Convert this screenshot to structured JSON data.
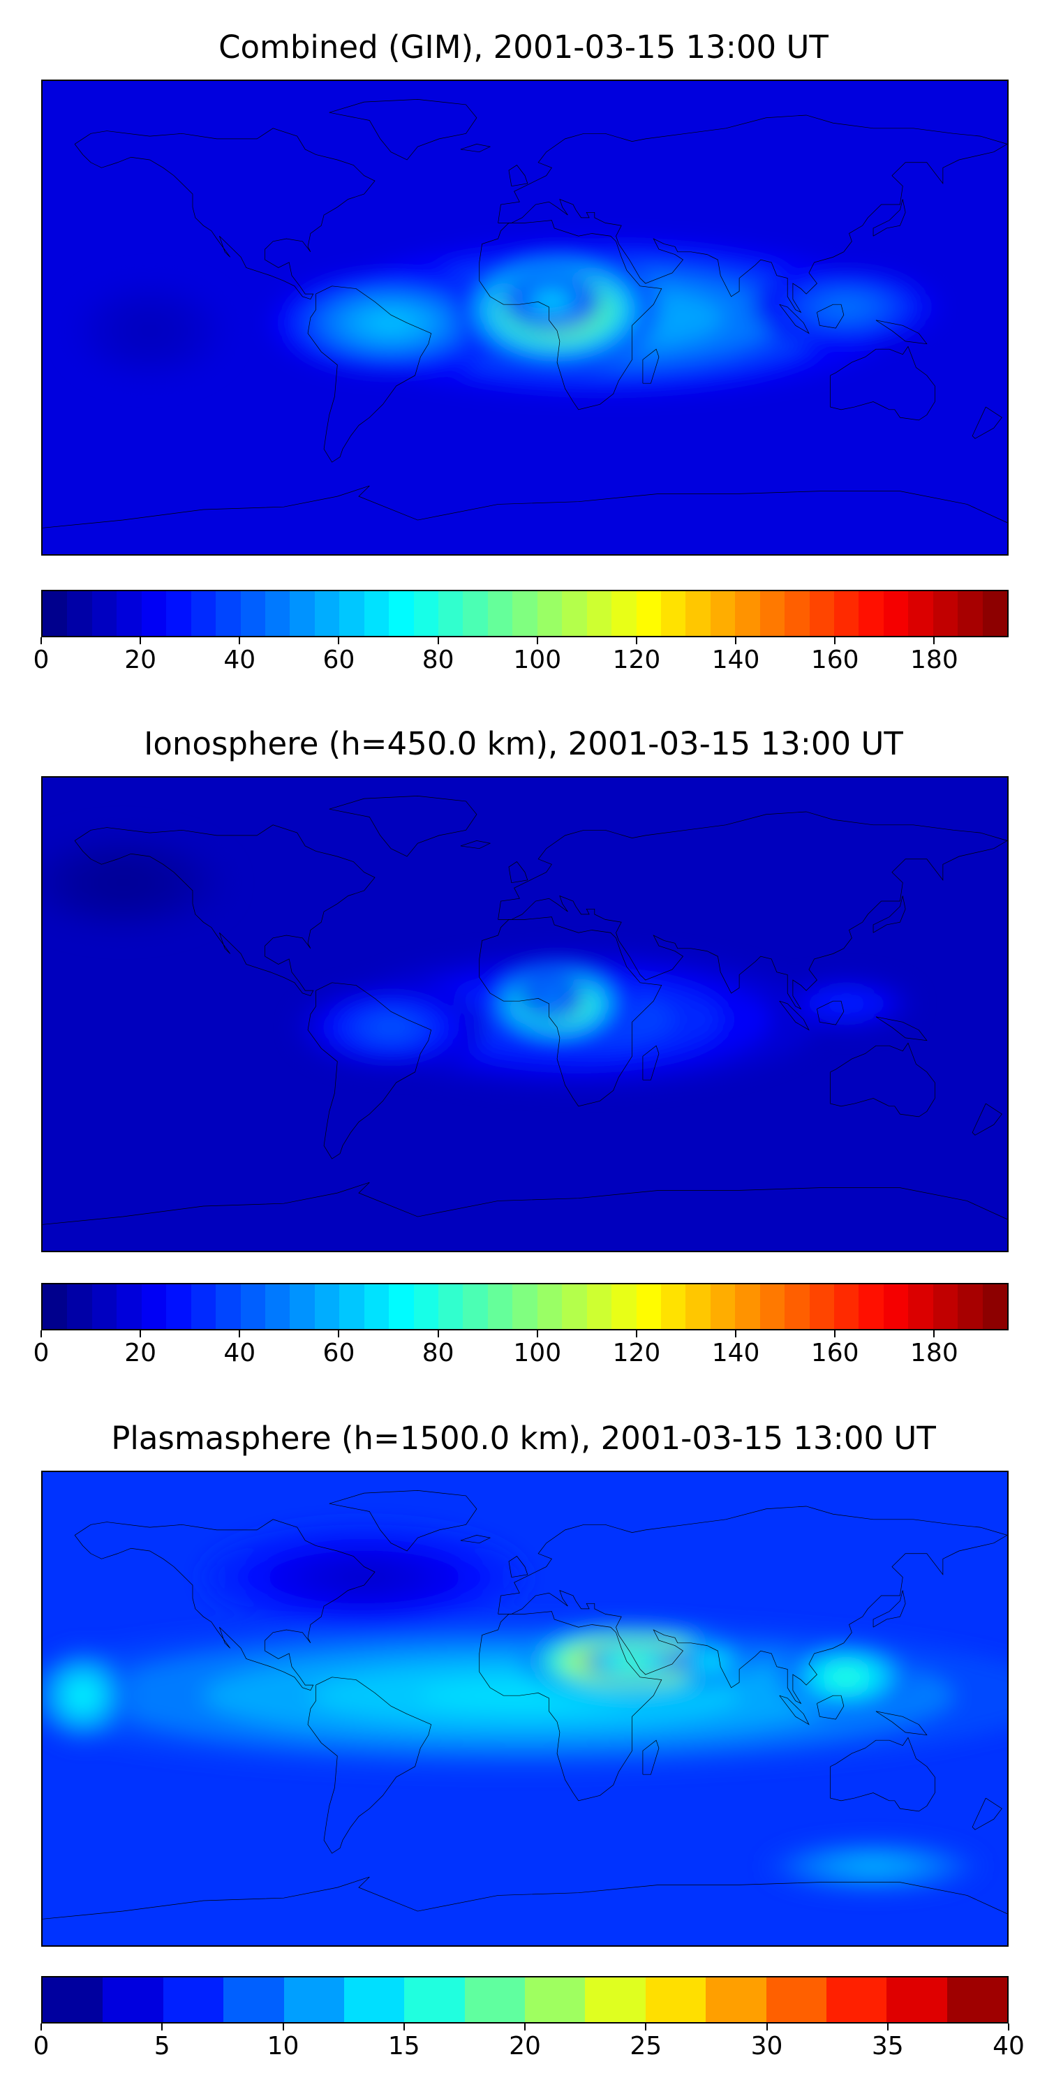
{
  "figure": {
    "panels": [
      {
        "id": "combined",
        "title": "Combined (GIM), 2001-03-15 13:00 UT",
        "colorbar": {
          "vmin": 0,
          "vmax": 195,
          "levels": 39,
          "ticks": [
            "0",
            "20",
            "40",
            "60",
            "80",
            "100",
            "120",
            "140",
            "160",
            "180"
          ],
          "tick_values": [
            0,
            20,
            40,
            60,
            80,
            100,
            120,
            140,
            160,
            180
          ]
        },
        "background_level": 18,
        "blobs": [
          {
            "lon": 30,
            "lat": 0,
            "rx": 110,
            "ry": 30,
            "amp": 45
          },
          {
            "lon": -50,
            "lat": -2,
            "rx": 45,
            "ry": 20,
            "amp": 45
          },
          {
            "lon": 12,
            "lat": 3,
            "rx": 38,
            "ry": 22,
            "amp": 100
          },
          {
            "lon": 10,
            "lat": 6,
            "rx": 18,
            "ry": 11,
            "amp": 50
          },
          {
            "lon": 120,
            "lat": 4,
            "rx": 35,
            "ry": 15,
            "amp": 30
          },
          {
            "lon": -140,
            "lat": -5,
            "rx": 30,
            "ry": 20,
            "amp": -6
          }
        ]
      },
      {
        "id": "ionosphere",
        "title": "Ionosphere  (h=450.0 km), 2001-03-15 13:00 UT",
        "colorbar": {
          "vmin": 0,
          "vmax": 195,
          "levels": 39,
          "ticks": [
            "0",
            "20",
            "40",
            "60",
            "80",
            "100",
            "120",
            "140",
            "160",
            "180"
          ],
          "tick_values": [
            0,
            20,
            40,
            60,
            80,
            100,
            120,
            140,
            160,
            180
          ]
        },
        "background_level": 12,
        "blobs": [
          {
            "lon": 20,
            "lat": -2,
            "rx": 90,
            "ry": 26,
            "amp": 30
          },
          {
            "lon": -50,
            "lat": -5,
            "rx": 35,
            "ry": 16,
            "amp": 30
          },
          {
            "lon": 12,
            "lat": 4,
            "rx": 28,
            "ry": 16,
            "amp": 95
          },
          {
            "lon": 10,
            "lat": 6,
            "rx": 12,
            "ry": 8,
            "amp": 45
          },
          {
            "lon": 120,
            "lat": 4,
            "rx": 25,
            "ry": 10,
            "amp": 20
          },
          {
            "lon": -150,
            "lat": 50,
            "rx": 40,
            "ry": 20,
            "amp": -8
          }
        ]
      },
      {
        "id": "plasmasphere",
        "title": "Plasmasphere (h=1500.0 km), 2001-03-15 13:00 UT",
        "colorbar": {
          "vmin": 0,
          "vmax": 40,
          "levels": 16,
          "ticks": [
            "0",
            "5",
            "10",
            "15",
            "20",
            "25",
            "30",
            "35",
            "40"
          ],
          "tick_values": [
            0,
            5,
            10,
            15,
            20,
            25,
            30,
            35,
            40
          ]
        },
        "background_level": 7,
        "blobs": [
          {
            "lon": 0,
            "lat": 5,
            "rx": 200,
            "ry": 28,
            "amp": 7
          },
          {
            "lon": -165,
            "lat": 5,
            "rx": 18,
            "ry": 18,
            "amp": 8
          },
          {
            "lon": 40,
            "lat": 18,
            "rx": 42,
            "ry": 14,
            "amp": 22
          },
          {
            "lon": 40,
            "lat": 18,
            "rx": 18,
            "ry": 7,
            "amp": 12
          },
          {
            "lon": 70,
            "lat": 18,
            "rx": 15,
            "ry": 7,
            "amp": 8
          },
          {
            "lon": 120,
            "lat": 12,
            "rx": 25,
            "ry": 13,
            "amp": 10
          },
          {
            "lon": -60,
            "lat": 50,
            "rx": 60,
            "ry": 20,
            "amp": -4
          },
          {
            "lon": 130,
            "lat": -60,
            "rx": 40,
            "ry": 10,
            "amp": 5
          }
        ]
      }
    ]
  }
}
